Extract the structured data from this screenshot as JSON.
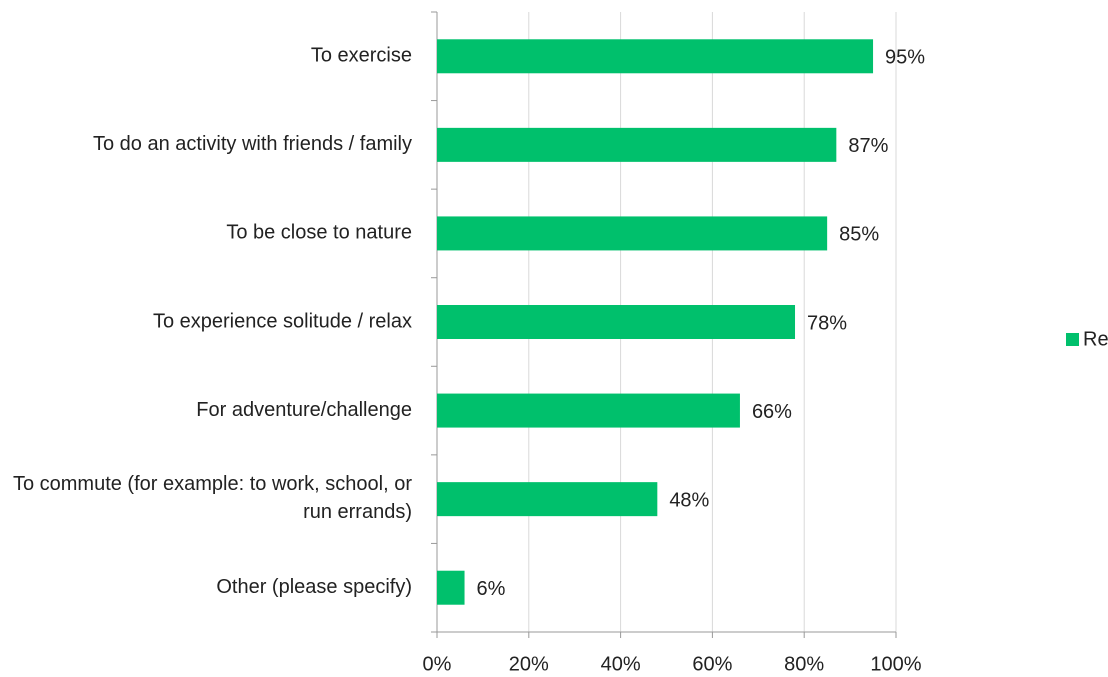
{
  "chart_data": {
    "type": "bar",
    "orientation": "horizontal",
    "categories": [
      "To exercise",
      "To do an activity with friends / family",
      "To be close to nature",
      "To experience solitude / relax",
      "For adventure/challenge",
      "To commute (for example: to work, school, or run errands)",
      "Other (please specify)"
    ],
    "series": [
      {
        "name": "Responses",
        "color": "#00c06c",
        "values": [
          95,
          87,
          85,
          78,
          66,
          48,
          6
        ],
        "value_labels": [
          "95%",
          "87%",
          "85%",
          "78%",
          "66%",
          "48%",
          "6%"
        ]
      }
    ],
    "xlim": [
      0,
      100
    ],
    "xticks": [
      {
        "value": 0,
        "label": "0%"
      },
      {
        "value": 20,
        "label": "20%"
      },
      {
        "value": 40,
        "label": "40%"
      },
      {
        "value": 60,
        "label": "60%"
      },
      {
        "value": 80,
        "label": "80%"
      },
      {
        "value": 100,
        "label": "100%"
      }
    ],
    "grid": true,
    "legend": "right"
  }
}
